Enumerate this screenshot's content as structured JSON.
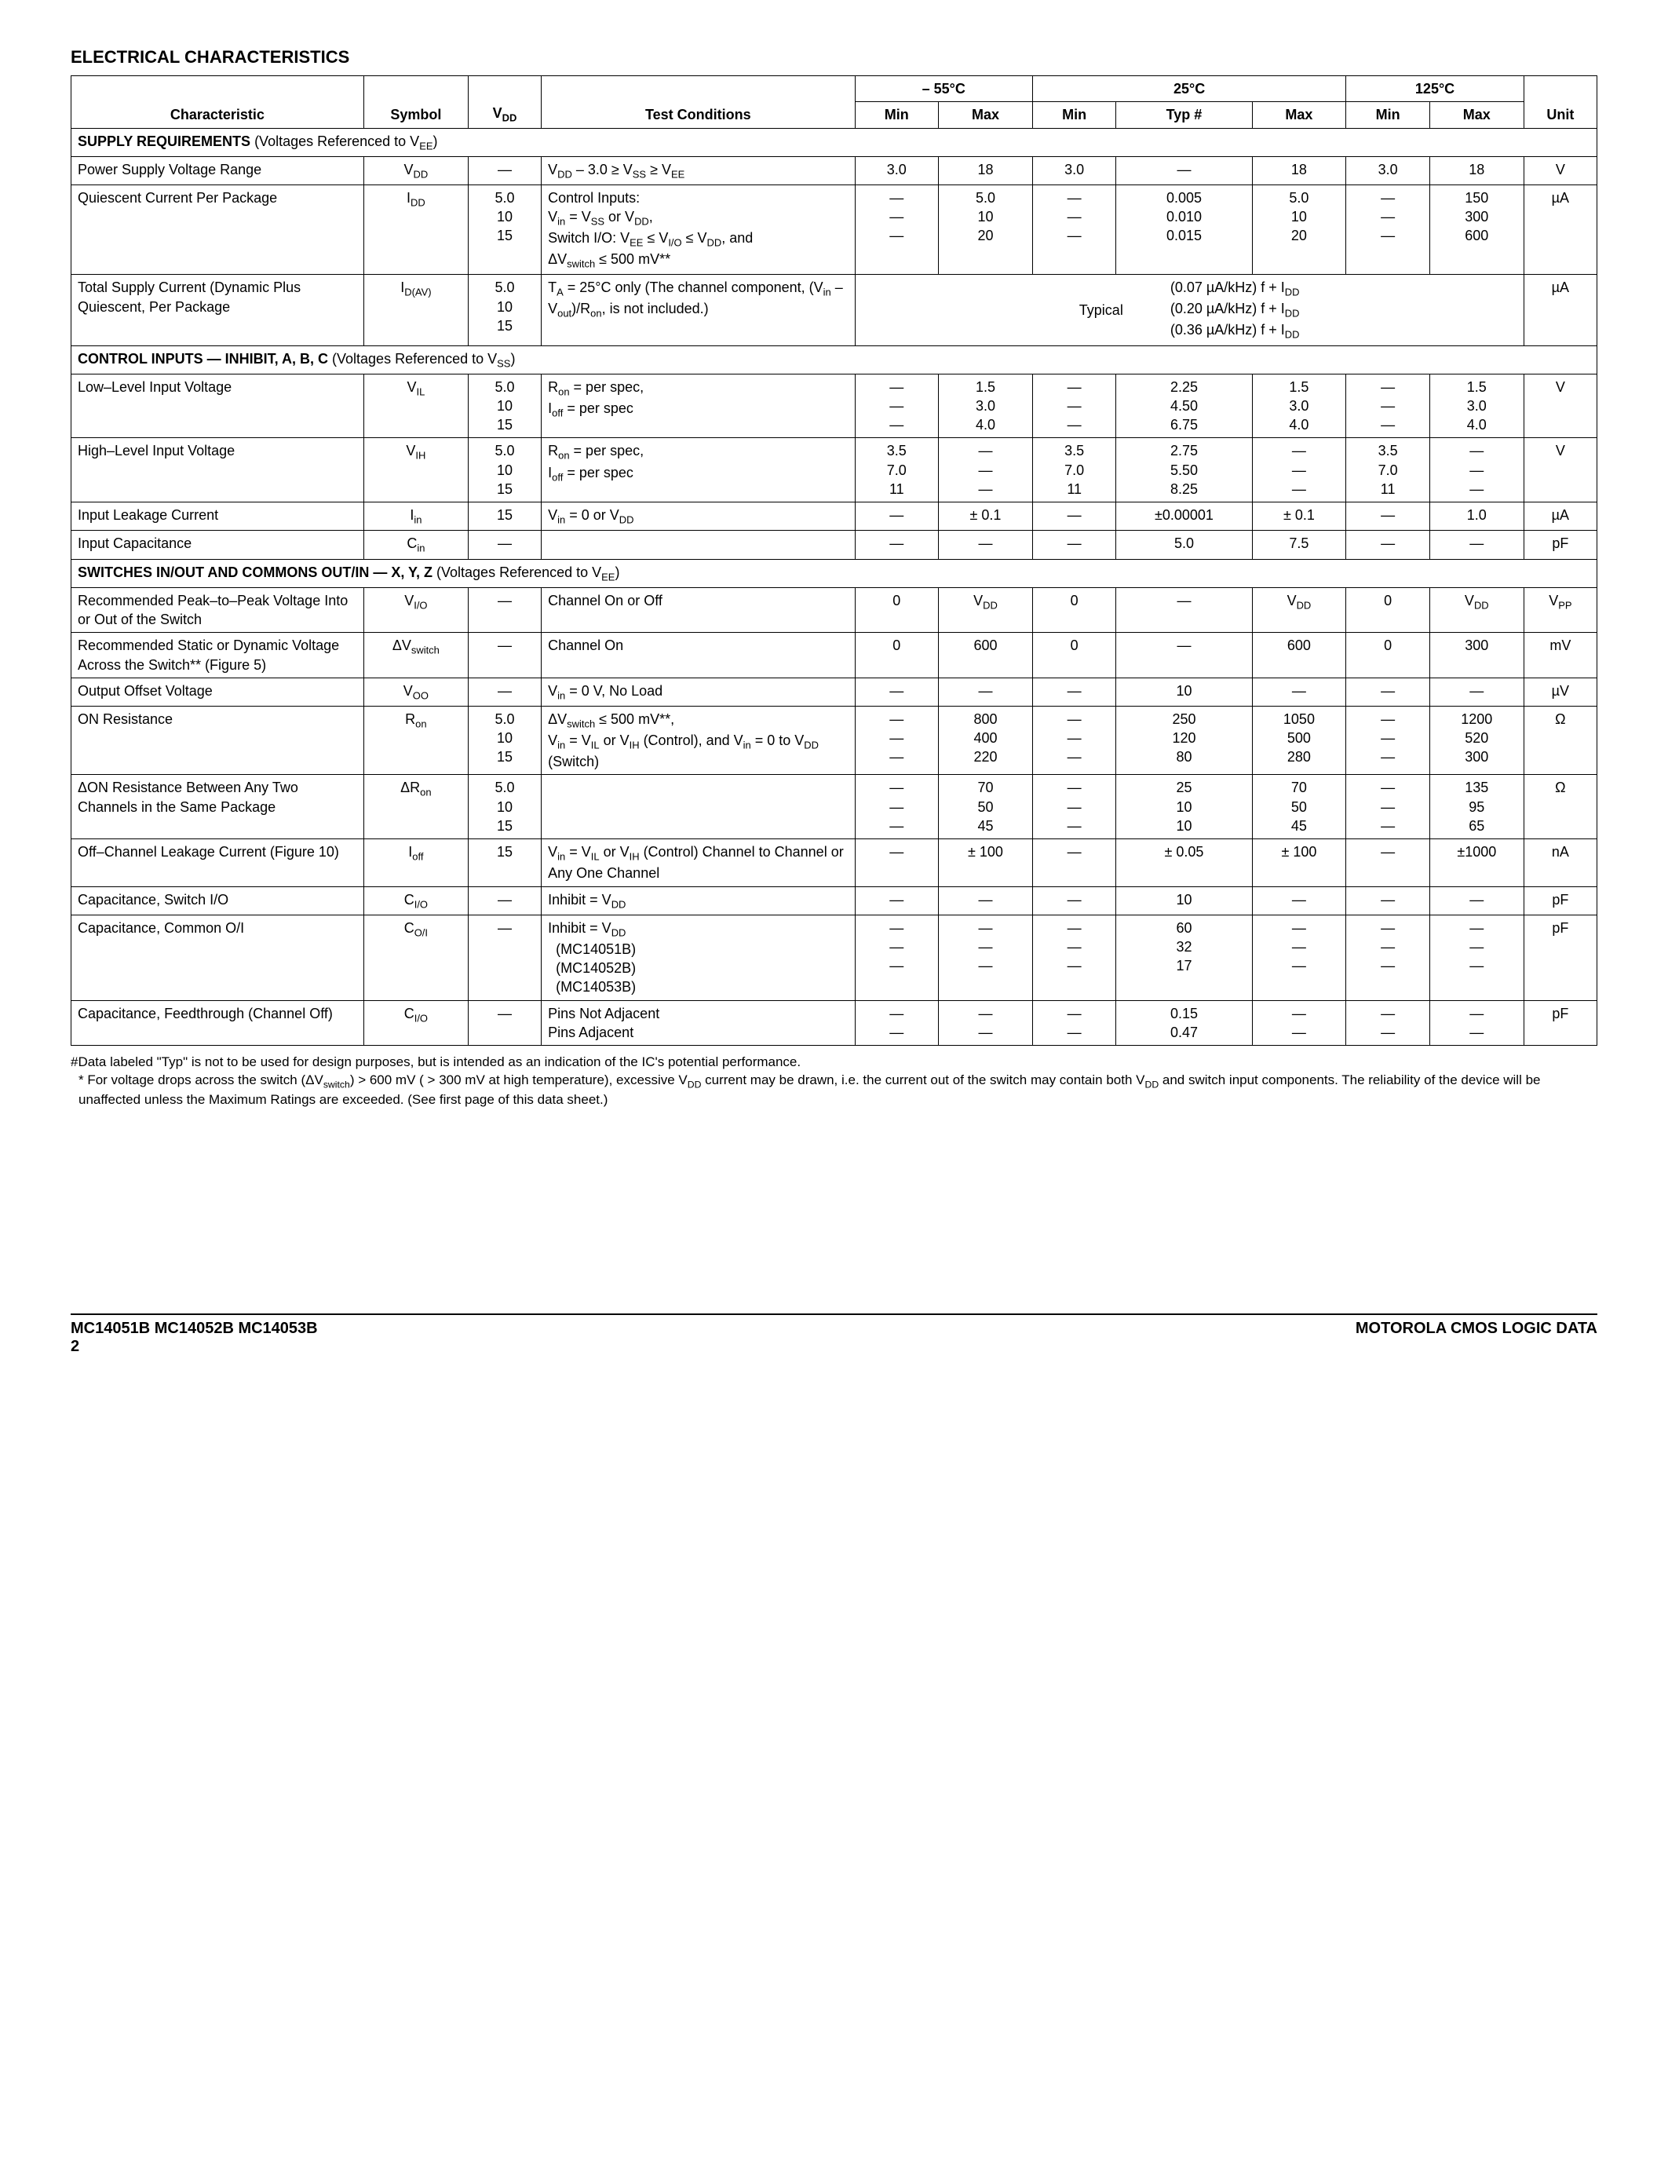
{
  "title": "ELECTRICAL CHARACTERISTICS",
  "temps": {
    "t1": "– 55°C",
    "t2": "25°C",
    "t3": "125°C"
  },
  "headers": {
    "char": "Characteristic",
    "sym": "Symbol",
    "vdd": "V<sub>DD</sub>",
    "test": "Test Conditions",
    "min": "Min",
    "max": "Max",
    "typ": "Typ #",
    "unit": "Unit"
  },
  "sections": {
    "supply": {
      "label": "SUPPLY REQUIREMENTS",
      "note": "(Voltages Referenced to V<sub>EE</sub>)"
    },
    "ctrl": {
      "label": "CONTROL INPUTS — INHIBIT, A, B, C",
      "note": "(Voltages Referenced to V<sub>SS</sub>)"
    },
    "swio": {
      "label": "SWITCHES IN/OUT AND COMMONS OUT/IN — X, Y, Z",
      "note": "(Voltages Referenced to V<sub>EE</sub>)"
    }
  },
  "rows": {
    "psv": {
      "char": "Power Supply Voltage Range",
      "sym": "V<sub>DD</sub>",
      "vdd": "—",
      "test": "V<sub>DD</sub> – 3.0 ≥ V<sub>SS</sub> ≥ V<sub>EE</sub>",
      "mn55": "3.0",
      "mx55": "18",
      "mn25": "3.0",
      "typ": "—",
      "mx25": "18",
      "mn125": "3.0",
      "mx125": "18",
      "unit": "V"
    },
    "qipp": {
      "char": "Quiescent Current Per Package",
      "sym": "I<sub>DD</sub>",
      "vdd": [
        "5.0",
        "10",
        "15"
      ],
      "test": "Control Inputs:<br>V<sub>in</sub> = V<sub>SS</sub> or V<sub>DD</sub>,<br>Switch I/O: V<sub>EE</sub> ≤ V<sub>I/O</sub> ≤ V<sub>DD</sub>, and<br>ΔV<sub>switch</sub> ≤ 500 mV**",
      "mn55": [
        "—",
        "—",
        "—"
      ],
      "mx55": [
        "5.0",
        "10",
        "20"
      ],
      "mn25": [
        "—",
        "—",
        "—"
      ],
      "typ": [
        "0.005",
        "0.010",
        "0.015"
      ],
      "mx25": [
        "5.0",
        "10",
        "20"
      ],
      "mn125": [
        "—",
        "—",
        "—"
      ],
      "mx125": [
        "150",
        "300",
        "600"
      ],
      "unit": "µA"
    },
    "tsc": {
      "char": "Total Supply Current (Dynamic Plus Quiescent, Per Package",
      "sym": "I<sub>D(AV)</sub>",
      "vdd": [
        "5.0",
        "10",
        "15"
      ],
      "test": "T<sub>A</sub> = 25°C only (The channel component, (V<sub>in</sub> – V<sub>out</sub>)/R<sub>on</sub>, is not included.)",
      "typlabel": "Typical",
      "typvals": [
        "(0.07 µA/kHz) f + I<sub>DD</sub>",
        "(0.20 µA/kHz) f + I<sub>DD</sub>",
        "(0.36 µA/kHz) f + I<sub>DD</sub>"
      ],
      "unit": "µA"
    },
    "vil": {
      "char": "Low–Level Input Voltage",
      "sym": "V<sub>IL</sub>",
      "vdd": [
        "5.0",
        "10",
        "15"
      ],
      "test": "R<sub>on</sub> = per spec,<br>I<sub>off</sub> = per spec",
      "mn55": [
        "—",
        "—",
        "—"
      ],
      "mx55": [
        "1.5",
        "3.0",
        "4.0"
      ],
      "mn25": [
        "—",
        "—",
        "—"
      ],
      "typ": [
        "2.25",
        "4.50",
        "6.75"
      ],
      "mx25": [
        "1.5",
        "3.0",
        "4.0"
      ],
      "mn125": [
        "—",
        "—",
        "—"
      ],
      "mx125": [
        "1.5",
        "3.0",
        "4.0"
      ],
      "unit": "V"
    },
    "vih": {
      "char": "High–Level Input Voltage",
      "sym": "V<sub>IH</sub>",
      "vdd": [
        "5.0",
        "10",
        "15"
      ],
      "test": "R<sub>on</sub> = per spec,<br>I<sub>off</sub> = per spec",
      "mn55": [
        "3.5",
        "7.0",
        "11"
      ],
      "mx55": [
        "—",
        "—",
        "—"
      ],
      "mn25": [
        "3.5",
        "7.0",
        "11"
      ],
      "typ": [
        "2.75",
        "5.50",
        "8.25"
      ],
      "mx25": [
        "—",
        "—",
        "—"
      ],
      "mn125": [
        "3.5",
        "7.0",
        "11"
      ],
      "mx125": [
        "—",
        "—",
        "—"
      ],
      "unit": "V"
    },
    "iin": {
      "char": "Input Leakage Current",
      "sym": "I<sub>in</sub>",
      "vdd": "15",
      "test": "V<sub>in</sub> = 0 or V<sub>DD</sub>",
      "mn55": "—",
      "mx55": "± 0.1",
      "mn25": "—",
      "typ": "±0.00001",
      "mx25": "± 0.1",
      "mn125": "—",
      "mx125": "1.0",
      "unit": "µA"
    },
    "cin": {
      "char": "Input Capacitance",
      "sym": "C<sub>in</sub>",
      "vdd": "—",
      "test": "",
      "mn55": "—",
      "mx55": "—",
      "mn25": "—",
      "typ": "5.0",
      "mx25": "7.5",
      "mn125": "—",
      "mx125": "—",
      "unit": "pF"
    },
    "vio": {
      "char": "Recommended Peak–to–Peak Voltage Into or Out of the Switch",
      "sym": "V<sub>I/O</sub>",
      "vdd": "—",
      "test": "Channel On or Off",
      "mn55": "0",
      "mx55": "V<sub>DD</sub>",
      "mn25": "0",
      "typ": "—",
      "mx25": "V<sub>DD</sub>",
      "mn125": "0",
      "mx125": "V<sub>DD</sub>",
      "unit": "V<sub>PP</sub>"
    },
    "dvsw": {
      "char": "Recommended Static or Dynamic Voltage Across the Switch** (Figure 5)",
      "sym": "ΔV<sub>switch</sub>",
      "vdd": "—",
      "test": "Channel On",
      "mn55": "0",
      "mx55": "600",
      "mn25": "0",
      "typ": "—",
      "mx25": "600",
      "mn125": "0",
      "mx125": "300",
      "unit": "mV"
    },
    "voo": {
      "char": "Output Offset Voltage",
      "sym": "V<sub>OO</sub>",
      "vdd": "—",
      "test": "V<sub>in</sub> = 0 V, No Load",
      "mn55": "—",
      "mx55": "—",
      "mn25": "—",
      "typ": "10",
      "mx25": "—",
      "mn125": "—",
      "mx125": "—",
      "unit": "µV"
    },
    "ron": {
      "char": "ON Resistance",
      "sym": "R<sub>on</sub>",
      "vdd": [
        "5.0",
        "10",
        "15"
      ],
      "test": "ΔV<sub>switch</sub> ≤ 500 mV**,<br>V<sub>in</sub> = V<sub>IL</sub> or V<sub>IH</sub> (Control), and V<sub>in</sub> = 0 to V<sub>DD</sub> (Switch)",
      "mn55": [
        "—",
        "—",
        "—"
      ],
      "mx55": [
        "800",
        "400",
        "220"
      ],
      "mn25": [
        "—",
        "—",
        "—"
      ],
      "typ": [
        "250",
        "120",
        "80"
      ],
      "mx25": [
        "1050",
        "500",
        "280"
      ],
      "mn125": [
        "—",
        "—",
        "—"
      ],
      "mx125": [
        "1200",
        "520",
        "300"
      ],
      "unit": "Ω"
    },
    "dron": {
      "char": "ΔON Resistance Between Any Two Channels in the Same Package",
      "sym": "ΔR<sub>on</sub>",
      "vdd": [
        "5.0",
        "10",
        "15"
      ],
      "test": "",
      "mn55": [
        "—",
        "—",
        "—"
      ],
      "mx55": [
        "70",
        "50",
        "45"
      ],
      "mn25": [
        "—",
        "—",
        "—"
      ],
      "typ": [
        "25",
        "10",
        "10"
      ],
      "mx25": [
        "70",
        "50",
        "45"
      ],
      "mn125": [
        "—",
        "—",
        "—"
      ],
      "mx125": [
        "135",
        "95",
        "65"
      ],
      "unit": "Ω"
    },
    "ioff": {
      "char": "Off–Channel Leakage Current (Figure 10)",
      "sym": "I<sub>off</sub>",
      "vdd": "15",
      "test": "V<sub>in</sub> = V<sub>IL</sub> or V<sub>IH</sub> (Control) Channel to Channel or Any One Channel",
      "mn55": "—",
      "mx55": "± 100",
      "mn25": "—",
      "typ": "± 0.05",
      "mx25": "± 100",
      "mn125": "—",
      "mx125": "±1000",
      "unit": "nA"
    },
    "cio": {
      "char": "Capacitance, Switch I/O",
      "sym": "C<sub>I/O</sub>",
      "vdd": "—",
      "test": "Inhibit = V<sub>DD</sub>",
      "mn55": "—",
      "mx55": "—",
      "mn25": "—",
      "typ": "10",
      "mx25": "—",
      "mn125": "—",
      "mx125": "—",
      "unit": "pF"
    },
    "coi": {
      "char": "Capacitance, Common O/I",
      "sym": "C<sub>O/I</sub>",
      "vdd": "—",
      "test": "Inhibit = V<sub>DD</sub><br>&nbsp;&nbsp;(MC14051B)<br>&nbsp;&nbsp;(MC14052B)<br>&nbsp;&nbsp;(MC14053B)",
      "mn55": [
        "",
        "—",
        "—",
        "—"
      ],
      "mx55": [
        "",
        "—",
        "—",
        "—"
      ],
      "mn25": [
        "",
        "—",
        "—",
        "—"
      ],
      "typ": [
        "",
        "60",
        "32",
        "17"
      ],
      "mx25": [
        "",
        "—",
        "—",
        "—"
      ],
      "mn125": [
        "",
        "—",
        "—",
        "—"
      ],
      "mx125": [
        "",
        "—",
        "—",
        "—"
      ],
      "unit": "pF"
    },
    "cft": {
      "char": "Capacitance, Feedthrough (Channel Off)",
      "sym": "C<sub>I/O</sub>",
      "vdd": "—",
      "test": "Pins Not Adjacent<br>Pins Adjacent",
      "mn55": [
        "—",
        "—"
      ],
      "mx55": [
        "—",
        "—"
      ],
      "mn25": [
        "—",
        "—"
      ],
      "typ": [
        "0.15",
        "0.47"
      ],
      "mx25": [
        "—",
        "—"
      ],
      "mn125": [
        "—",
        "—"
      ],
      "mx125": [
        "—",
        "—"
      ],
      "unit": "pF"
    }
  },
  "footnotes": [
    "#Data labeled \"Typ\" is not to be used for design purposes, but is intended as an indication of the IC's potential performance.",
    "* For voltage drops across the switch (ΔV<sub>switch</sub>) > 600 mV ( > 300 mV at high temperature), excessive V<sub>DD</sub> current may be drawn, i.e. the current out of the switch may contain both V<sub>DD</sub> and switch input components. The reliability of the device will be unaffected unless the Maximum Ratings are exceeded. (See first page of this data sheet.)"
  ],
  "footer": {
    "left1": "MC14051B MC14052B MC14053B",
    "left2": "2",
    "right": "MOTOROLA CMOS LOGIC DATA"
  }
}
